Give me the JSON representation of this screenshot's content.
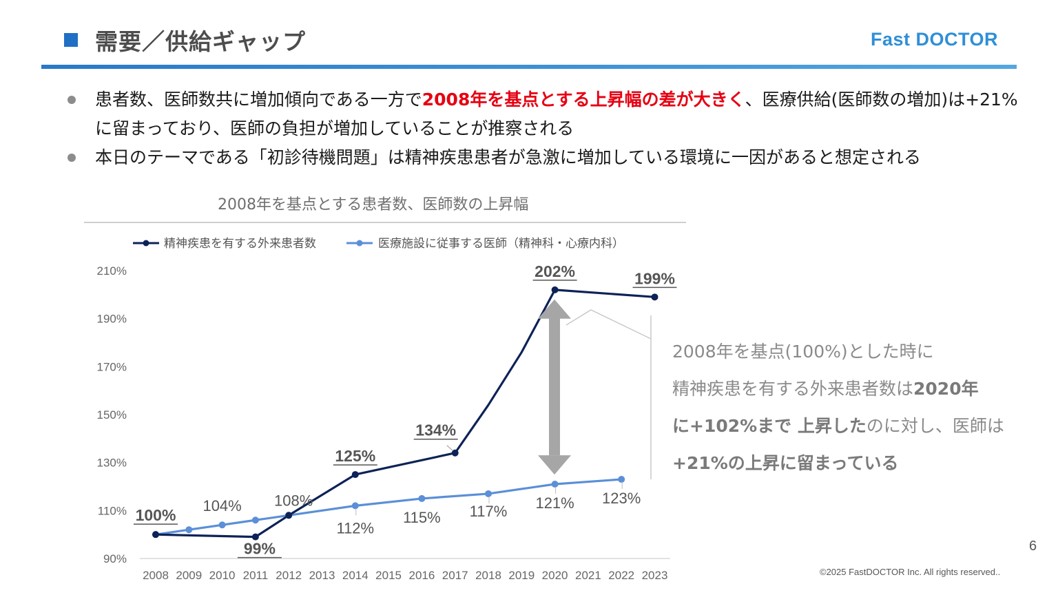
{
  "header": {
    "title": "需要／供給ギャップ",
    "logo_text": "Fast DOCTOR"
  },
  "bullets": [
    {
      "pre": "患者数、医師数共に増加傾向である一方で",
      "highlight": "2008年を基点とする上昇幅の差が大きく",
      "post": "、医療供給(医師数の増加)は+21%に留まっており、医師の負担が増加していることが推察される"
    },
    {
      "pre": "本日のテーマである「初診待機問題」は精神疾患患者が急激に増加している環境に一因があると想定される",
      "highlight": "",
      "post": ""
    }
  ],
  "note": {
    "line1": "2008年を基点(100%)とした時に",
    "line2_a": "精神疾患を有する外来患者数は",
    "line2_b": "2020年",
    "line3_a": "に+102%まで 上昇した",
    "line3_b": "のに対し、医師は",
    "line4": "+21%の上昇に留まっている"
  },
  "footer": {
    "copyright": "©2025 FastDOCTOR Inc. All rights reserved..",
    "page_number": "6"
  },
  "colors": {
    "patients": "#0d2257",
    "doctors": "#5b8fd8",
    "accent_red": "#e60012",
    "arrow": "#a6a6a6"
  },
  "chart_data": {
    "type": "line",
    "title": "2008年を基点とする患者数、医師数の上昇幅",
    "x": [
      "2008",
      "2009",
      "2010",
      "2011",
      "2012",
      "2013",
      "2014",
      "2015",
      "2016",
      "2017",
      "2018",
      "2019",
      "2020",
      "2021",
      "2022",
      "2023"
    ],
    "yticks": [
      "90%",
      "110%",
      "130%",
      "150%",
      "170%",
      "190%",
      "210%"
    ],
    "ylim": [
      90,
      210
    ],
    "legend_position": "top",
    "series": [
      {
        "name": "精神疾患を有する外来患者数",
        "points": [
          {
            "year": "2008",
            "value": 100,
            "label": "100%"
          },
          {
            "year": "2011",
            "value": 99,
            "label": "99%"
          },
          {
            "year": "2012",
            "value": 108
          },
          {
            "year": "2014",
            "value": 125,
            "label": "125%"
          },
          {
            "year": "2017",
            "value": 134,
            "label": "134%"
          },
          {
            "year": "2018",
            "value": 154
          },
          {
            "year": "2019",
            "value": 176
          },
          {
            "year": "2020",
            "value": 202,
            "label": "202%"
          },
          {
            "year": "2023",
            "value": 199,
            "label": "199%"
          }
        ]
      },
      {
        "name": "医療施設に従事する医師（精神科・心療内科）",
        "points": [
          {
            "year": "2008",
            "value": 100
          },
          {
            "year": "2009",
            "value": 102
          },
          {
            "year": "2010",
            "value": 104,
            "label": "104%"
          },
          {
            "year": "2011",
            "value": 106
          },
          {
            "year": "2012",
            "value": 108,
            "label": "108%"
          },
          {
            "year": "2014",
            "value": 112,
            "label": "112%"
          },
          {
            "year": "2016",
            "value": 115,
            "label": "115%"
          },
          {
            "year": "2018",
            "value": 117,
            "label": "117%"
          },
          {
            "year": "2020",
            "value": 121,
            "label": "121%"
          },
          {
            "year": "2022",
            "value": 123,
            "label": "123%"
          }
        ]
      }
    ]
  }
}
